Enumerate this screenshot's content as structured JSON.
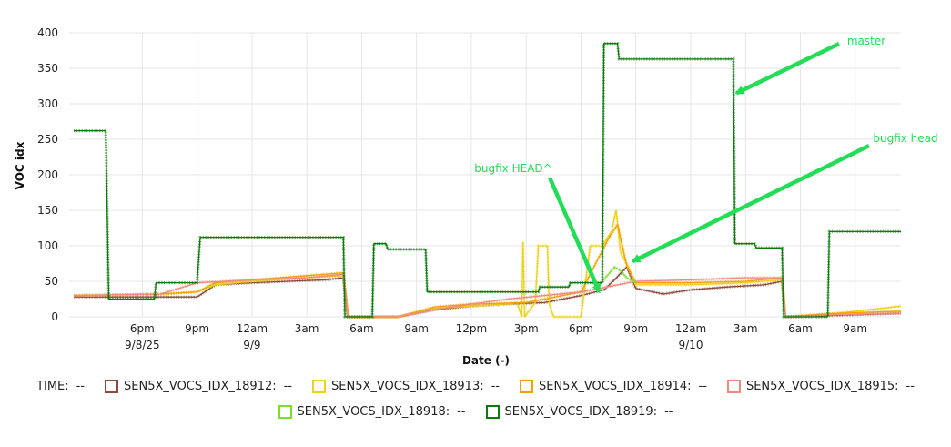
{
  "chart_data": {
    "type": "line",
    "xlabel": "Date (-)",
    "ylabel": "VOC idx",
    "ylim": [
      0,
      400
    ],
    "yticks": [
      0,
      50,
      100,
      150,
      200,
      250,
      300,
      350,
      400
    ],
    "xlim": [
      "2025-09-08 14:00",
      "2025-09-10 11:30"
    ],
    "xticks": [
      {
        "t": "2025-09-08 18:00",
        "label": "6pm",
        "sub": "9/8/25"
      },
      {
        "t": "2025-09-08 21:00",
        "label": "9pm",
        "sub": ""
      },
      {
        "t": "2025-09-09 00:00",
        "label": "12am",
        "sub": "9/9"
      },
      {
        "t": "2025-09-09 03:00",
        "label": "3am",
        "sub": ""
      },
      {
        "t": "2025-09-09 06:00",
        "label": "6am",
        "sub": ""
      },
      {
        "t": "2025-09-09 09:00",
        "label": "9am",
        "sub": ""
      },
      {
        "t": "2025-09-09 12:00",
        "label": "12pm",
        "sub": ""
      },
      {
        "t": "2025-09-09 15:00",
        "label": "3pm",
        "sub": ""
      },
      {
        "t": "2025-09-09 18:00",
        "label": "6pm",
        "sub": ""
      },
      {
        "t": "2025-09-09 21:00",
        "label": "9pm",
        "sub": ""
      },
      {
        "t": "2025-09-10 00:00",
        "label": "12am",
        "sub": "9/10"
      },
      {
        "t": "2025-09-10 03:00",
        "label": "3am",
        "sub": ""
      },
      {
        "t": "2025-09-10 06:00",
        "label": "6am",
        "sub": ""
      },
      {
        "t": "2025-09-10 09:00",
        "label": "9am",
        "sub": ""
      }
    ],
    "grid": true,
    "legend_position": "bottom",
    "series": [
      {
        "name": "SEN5X_VOCS_IDX_18912",
        "color": "#8b4a3c",
        "points": [
          [
            "2025-09-08 14:15",
            28
          ],
          [
            "2025-09-08 16:00",
            28
          ],
          [
            "2025-09-08 19:00",
            28
          ],
          [
            "2025-09-08 21:00",
            28
          ],
          [
            "2025-09-08 22:00",
            45
          ],
          [
            "2025-09-09 00:00",
            48
          ],
          [
            "2025-09-09 02:00",
            50
          ],
          [
            "2025-09-09 04:00",
            52
          ],
          [
            "2025-09-09 05:00",
            55
          ],
          [
            "2025-09-09 05:15",
            0
          ],
          [
            "2025-09-09 06:30",
            0
          ],
          [
            "2025-09-09 08:00",
            0
          ],
          [
            "2025-09-09 10:00",
            10
          ],
          [
            "2025-09-09 12:00",
            15
          ],
          [
            "2025-09-09 14:00",
            18
          ],
          [
            "2025-09-09 16:00",
            20
          ],
          [
            "2025-09-09 18:00",
            30
          ],
          [
            "2025-09-09 19:15",
            38
          ],
          [
            "2025-09-09 19:45",
            50
          ],
          [
            "2025-09-09 20:30",
            70
          ],
          [
            "2025-09-09 21:00",
            40
          ],
          [
            "2025-09-09 22:30",
            32
          ],
          [
            "2025-09-10 00:00",
            38
          ],
          [
            "2025-09-10 02:00",
            42
          ],
          [
            "2025-09-10 04:00",
            45
          ],
          [
            "2025-09-10 05:00",
            50
          ],
          [
            "2025-09-10 05:10",
            0
          ],
          [
            "2025-09-10 08:00",
            2
          ],
          [
            "2025-09-10 11:30",
            5
          ]
        ]
      },
      {
        "name": "SEN5X_VOCS_IDX_18913",
        "color": "#ecd21a",
        "points": [
          [
            "2025-09-08 14:15",
            30
          ],
          [
            "2025-09-08 19:00",
            32
          ],
          [
            "2025-09-08 21:00",
            35
          ],
          [
            "2025-09-08 22:00",
            45
          ],
          [
            "2025-09-09 00:00",
            50
          ],
          [
            "2025-09-09 03:00",
            55
          ],
          [
            "2025-09-09 05:00",
            58
          ],
          [
            "2025-09-09 05:15",
            0
          ],
          [
            "2025-09-09 08:00",
            0
          ],
          [
            "2025-09-09 10:00",
            12
          ],
          [
            "2025-09-09 12:00",
            15
          ],
          [
            "2025-09-09 14:00",
            18
          ],
          [
            "2025-09-09 14:30",
            20
          ],
          [
            "2025-09-09 14:45",
            0
          ],
          [
            "2025-09-09 14:50",
            105
          ],
          [
            "2025-09-09 14:55",
            0
          ],
          [
            "2025-09-09 15:30",
            20
          ],
          [
            "2025-09-09 15:40",
            100
          ],
          [
            "2025-09-09 16:10",
            100
          ],
          [
            "2025-09-09 16:15",
            20
          ],
          [
            "2025-09-09 16:30",
            0
          ],
          [
            "2025-09-09 18:00",
            0
          ],
          [
            "2025-09-09 18:30",
            100
          ],
          [
            "2025-09-09 19:10",
            100
          ],
          [
            "2025-09-09 19:40",
            120
          ],
          [
            "2025-09-09 19:55",
            150
          ],
          [
            "2025-09-09 20:10",
            90
          ],
          [
            "2025-09-09 20:30",
            75
          ],
          [
            "2025-09-09 21:00",
            45
          ],
          [
            "2025-09-10 00:00",
            45
          ],
          [
            "2025-09-10 03:00",
            48
          ],
          [
            "2025-09-10 05:00",
            52
          ],
          [
            "2025-09-10 05:10",
            0
          ],
          [
            "2025-09-10 08:00",
            5
          ],
          [
            "2025-09-10 11:30",
            15
          ]
        ]
      },
      {
        "name": "SEN5X_VOCS_IDX_18914",
        "color": "#f0a300",
        "points": [
          [
            "2025-09-08 14:15",
            30
          ],
          [
            "2025-09-08 19:00",
            32
          ],
          [
            "2025-09-08 21:00",
            35
          ],
          [
            "2025-09-08 22:00",
            48
          ],
          [
            "2025-09-09 00:00",
            52
          ],
          [
            "2025-09-09 03:00",
            58
          ],
          [
            "2025-09-09 05:00",
            62
          ],
          [
            "2025-09-09 05:15",
            0
          ],
          [
            "2025-09-09 08:00",
            0
          ],
          [
            "2025-09-09 10:00",
            14
          ],
          [
            "2025-09-09 12:00",
            18
          ],
          [
            "2025-09-09 15:00",
            20
          ],
          [
            "2025-09-09 18:00",
            35
          ],
          [
            "2025-09-09 19:30",
            110
          ],
          [
            "2025-09-09 20:00",
            130
          ],
          [
            "2025-09-09 20:30",
            72
          ],
          [
            "2025-09-09 21:00",
            48
          ],
          [
            "2025-09-10 00:00",
            48
          ],
          [
            "2025-09-10 03:00",
            50
          ],
          [
            "2025-09-10 05:00",
            55
          ],
          [
            "2025-09-10 05:10",
            0
          ],
          [
            "2025-09-10 08:00",
            5
          ],
          [
            "2025-09-10 11:30",
            8
          ]
        ]
      },
      {
        "name": "SEN5X_VOCS_IDX_18915",
        "color": "#f08a80",
        "points": [
          [
            "2025-09-08 14:15",
            30
          ],
          [
            "2025-09-08 19:00",
            32
          ],
          [
            "2025-09-08 21:00",
            48
          ],
          [
            "2025-09-09 00:00",
            52
          ],
          [
            "2025-09-09 03:00",
            55
          ],
          [
            "2025-09-09 05:00",
            60
          ],
          [
            "2025-09-09 05:15",
            0
          ],
          [
            "2025-09-09 08:00",
            0
          ],
          [
            "2025-09-09 10:00",
            10
          ],
          [
            "2025-09-09 12:00",
            18
          ],
          [
            "2025-09-09 14:00",
            25
          ],
          [
            "2025-09-09 16:00",
            30
          ],
          [
            "2025-09-09 18:00",
            35
          ],
          [
            "2025-09-09 21:00",
            50
          ],
          [
            "2025-09-10 00:00",
            52
          ],
          [
            "2025-09-10 03:00",
            55
          ],
          [
            "2025-09-10 05:00",
            55
          ],
          [
            "2025-09-10 05:10",
            0
          ],
          [
            "2025-09-10 08:00",
            3
          ],
          [
            "2025-09-10 11:30",
            5
          ]
        ]
      },
      {
        "name": "SEN5X_VOCS_IDX_18918",
        "color": "#7be02a",
        "points": [
          [
            "2025-09-09 19:00",
            45
          ],
          [
            "2025-09-09 19:30",
            60
          ],
          [
            "2025-09-09 19:50",
            70
          ],
          [
            "2025-09-09 20:10",
            65
          ],
          [
            "2025-09-09 20:30",
            55
          ],
          [
            "2025-09-09 21:00",
            48
          ]
        ]
      },
      {
        "name": "SEN5X_VOCS_IDX_18919",
        "color": "#0c7a0c",
        "points": [
          [
            "2025-09-08 14:15",
            262
          ],
          [
            "2025-09-08 16:00",
            262
          ],
          [
            "2025-09-08 16:10",
            25
          ],
          [
            "2025-09-08 18:40",
            25
          ],
          [
            "2025-09-08 18:45",
            48
          ],
          [
            "2025-09-08 21:00",
            48
          ],
          [
            "2025-09-08 21:10",
            112
          ],
          [
            "2025-09-09 05:00",
            112
          ],
          [
            "2025-09-09 05:05",
            0
          ],
          [
            "2025-09-09 06:35",
            0
          ],
          [
            "2025-09-09 06:40",
            103
          ],
          [
            "2025-09-09 07:20",
            103
          ],
          [
            "2025-09-09 07:25",
            95
          ],
          [
            "2025-09-09 09:30",
            95
          ],
          [
            "2025-09-09 09:35",
            35
          ],
          [
            "2025-09-09 15:40",
            35
          ],
          [
            "2025-09-09 15:45",
            42
          ],
          [
            "2025-09-09 17:20",
            42
          ],
          [
            "2025-09-09 17:25",
            48
          ],
          [
            "2025-09-09 19:10",
            48
          ],
          [
            "2025-09-09 19:15",
            385
          ],
          [
            "2025-09-09 20:00",
            385
          ],
          [
            "2025-09-09 20:05",
            363
          ],
          [
            "2025-09-10 02:20",
            363
          ],
          [
            "2025-09-10 02:25",
            103
          ],
          [
            "2025-09-10 03:30",
            103
          ],
          [
            "2025-09-10 03:35",
            97
          ],
          [
            "2025-09-10 05:00",
            97
          ],
          [
            "2025-09-10 05:05",
            0
          ],
          [
            "2025-09-10 07:30",
            0
          ],
          [
            "2025-09-10 07:35",
            120
          ],
          [
            "2025-09-10 11:30",
            120
          ]
        ]
      }
    ],
    "annotations": [
      {
        "text": "master",
        "color": "#22dd55",
        "from": [
          "2025-09-10 00:00",
          335
        ],
        "arrow_end": [
          "2025-09-10 02:30",
          315
        ],
        "label_at": [
          "2025-09-10 04:45",
          398
        ]
      },
      {
        "text": "bugfix head",
        "color": "#22dd55",
        "arrow_end": [
          "2025-09-09 20:50",
          78
        ],
        "label_at": [
          "2025-09-10 07:20",
          252
        ]
      },
      {
        "text": "bugfix HEAD^",
        "color": "#22dd55",
        "arrow_end": [
          "2025-09-09 19:00",
          35
        ],
        "label_at": [
          "2025-09-09 15:00",
          210
        ]
      }
    ]
  },
  "legend": {
    "time_label": "TIME:",
    "time_value": "--",
    "items": [
      {
        "name": "SEN5X_VOCS_IDX_18912:",
        "value": "--",
        "color": "#8b4a3c"
      },
      {
        "name": "SEN5X_VOCS_IDX_18913:",
        "value": "--",
        "color": "#ecd21a"
      },
      {
        "name": "SEN5X_VOCS_IDX_18914:",
        "value": "--",
        "color": "#f0a300"
      },
      {
        "name": "SEN5X_VOCS_IDX_18915:",
        "value": "--",
        "color": "#f08a80"
      },
      {
        "name": "SEN5X_VOCS_IDX_18918:",
        "value": "--",
        "color": "#7be02a"
      },
      {
        "name": "SEN5X_VOCS_IDX_18919:",
        "value": "--",
        "color": "#0c7a0c"
      }
    ]
  }
}
